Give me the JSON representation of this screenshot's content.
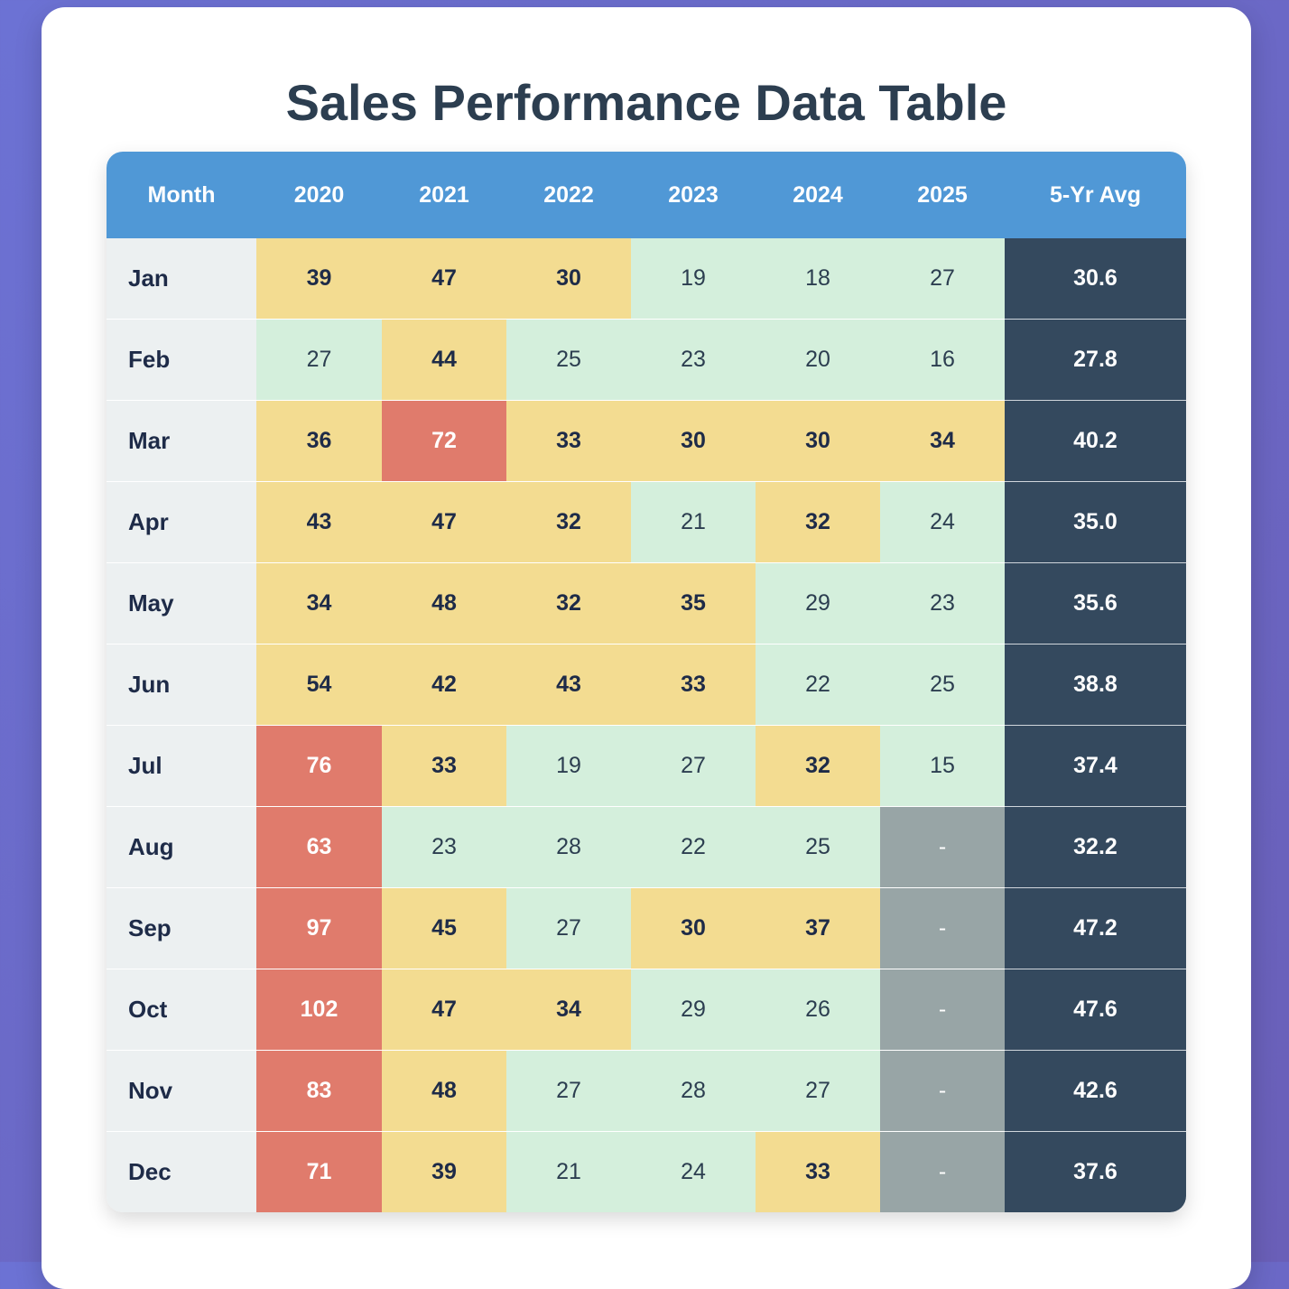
{
  "page": {
    "title": "Sales Performance Data Table"
  },
  "colors": {
    "header": "#5098d6",
    "month_column": "#ecf0f1",
    "low": "#d4efdc",
    "mid": "#f3dc91",
    "high": "#e07b6c",
    "missing": "#98a5a6",
    "avg_column": "#34495e"
  },
  "chart_data": {
    "type": "table",
    "title": "Sales Performance Data Table",
    "columns": [
      "Month",
      "2020",
      "2021",
      "2022",
      "2023",
      "2024",
      "2025",
      "5-Yr Avg"
    ],
    "rows": [
      {
        "month": "Jan",
        "values": [
          "39",
          "47",
          "30",
          "19",
          "18",
          "27"
        ],
        "levels": [
          "mid",
          "mid",
          "mid",
          "low",
          "low",
          "low"
        ],
        "avg": "30.6"
      },
      {
        "month": "Feb",
        "values": [
          "27",
          "44",
          "25",
          "23",
          "20",
          "16"
        ],
        "levels": [
          "low",
          "mid",
          "low",
          "low",
          "low",
          "low"
        ],
        "avg": "27.8"
      },
      {
        "month": "Mar",
        "values": [
          "36",
          "72",
          "33",
          "30",
          "30",
          "34"
        ],
        "levels": [
          "mid",
          "high",
          "mid",
          "mid",
          "mid",
          "mid"
        ],
        "avg": "40.2"
      },
      {
        "month": "Apr",
        "values": [
          "43",
          "47",
          "32",
          "21",
          "32",
          "24"
        ],
        "levels": [
          "mid",
          "mid",
          "mid",
          "low",
          "mid",
          "low"
        ],
        "avg": "35.0"
      },
      {
        "month": "May",
        "values": [
          "34",
          "48",
          "32",
          "35",
          "29",
          "23"
        ],
        "levels": [
          "mid",
          "mid",
          "mid",
          "mid",
          "low",
          "low"
        ],
        "avg": "35.6"
      },
      {
        "month": "Jun",
        "values": [
          "54",
          "42",
          "43",
          "33",
          "22",
          "25"
        ],
        "levels": [
          "mid",
          "mid",
          "mid",
          "mid",
          "low",
          "low"
        ],
        "avg": "38.8"
      },
      {
        "month": "Jul",
        "values": [
          "76",
          "33",
          "19",
          "27",
          "32",
          "15"
        ],
        "levels": [
          "high",
          "mid",
          "low",
          "low",
          "mid",
          "low"
        ],
        "avg": "37.4"
      },
      {
        "month": "Aug",
        "values": [
          "63",
          "23",
          "28",
          "22",
          "25",
          "-"
        ],
        "levels": [
          "high",
          "low",
          "low",
          "low",
          "low",
          "none"
        ],
        "avg": "32.2"
      },
      {
        "month": "Sep",
        "values": [
          "97",
          "45",
          "27",
          "30",
          "37",
          "-"
        ],
        "levels": [
          "high",
          "mid",
          "low",
          "mid",
          "mid",
          "none"
        ],
        "avg": "47.2"
      },
      {
        "month": "Oct",
        "values": [
          "102",
          "47",
          "34",
          "29",
          "26",
          "-"
        ],
        "levels": [
          "high",
          "mid",
          "mid",
          "low",
          "low",
          "none"
        ],
        "avg": "47.6"
      },
      {
        "month": "Nov",
        "values": [
          "83",
          "48",
          "27",
          "28",
          "27",
          "-"
        ],
        "levels": [
          "high",
          "mid",
          "low",
          "low",
          "low",
          "none"
        ],
        "avg": "42.6"
      },
      {
        "month": "Dec",
        "values": [
          "71",
          "39",
          "21",
          "24",
          "33",
          "-"
        ],
        "levels": [
          "high",
          "mid",
          "low",
          "low",
          "mid",
          "none"
        ],
        "avg": "37.6"
      }
    ]
  }
}
